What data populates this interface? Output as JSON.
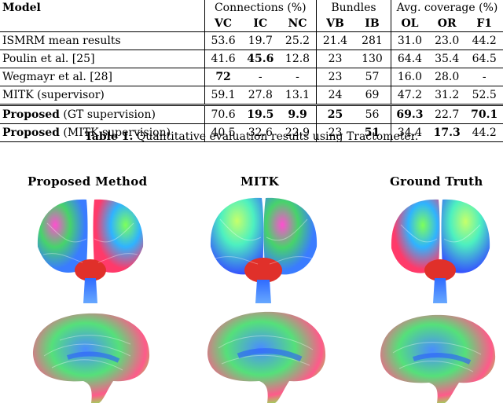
{
  "table": {
    "model_header": "Model",
    "groups": {
      "connections": "Connections (%)",
      "bundles": "Bundles",
      "coverage": "Avg. coverage (%)"
    },
    "columns": [
      "VC",
      "IC",
      "NC",
      "VB",
      "IB",
      "OL",
      "OR",
      "F1"
    ],
    "rows": [
      {
        "model_bold": "",
        "model": "ISMRM mean results",
        "values": [
          "53.6",
          "19.7",
          "25.2",
          "21.4",
          "281",
          "31.0",
          "23.0",
          "44.2"
        ]
      },
      {
        "model_bold": "",
        "model": "Poulin et al. [25]",
        "values": [
          "41.6",
          "45.6",
          "12.8",
          "23",
          "130",
          "64.4",
          "35.4",
          "64.5"
        ]
      },
      {
        "model_bold": "",
        "model": "Wegmayr et al. [28]",
        "values": [
          "72",
          "-",
          "-",
          "23",
          "57",
          "16.0",
          "28.0",
          "-"
        ]
      },
      {
        "model_bold": "",
        "model": "MITK (supervisor)",
        "values": [
          "59.1",
          "27.8",
          "13.1",
          "24",
          "69",
          "47.2",
          "31.2",
          "52.5"
        ]
      },
      {
        "model_bold": "Proposed",
        "model": " (GT supervision)",
        "values": [
          "70.6",
          "19.5",
          "9.9",
          "25",
          "56",
          "69.3",
          "22.7",
          "70.1"
        ]
      },
      {
        "model_bold": "Proposed",
        "model": " (MITK supervision)",
        "values": [
          "40.5",
          "32.6",
          "22.9",
          "23",
          "51",
          "34.4",
          "17.3",
          "44.2"
        ]
      }
    ],
    "caption_label": "Table 1.",
    "caption_text": " Quantitative evaluation results using Tractometer."
  },
  "figure": {
    "columns": [
      "Proposed Method",
      "MITK",
      "Ground Truth"
    ]
  }
}
